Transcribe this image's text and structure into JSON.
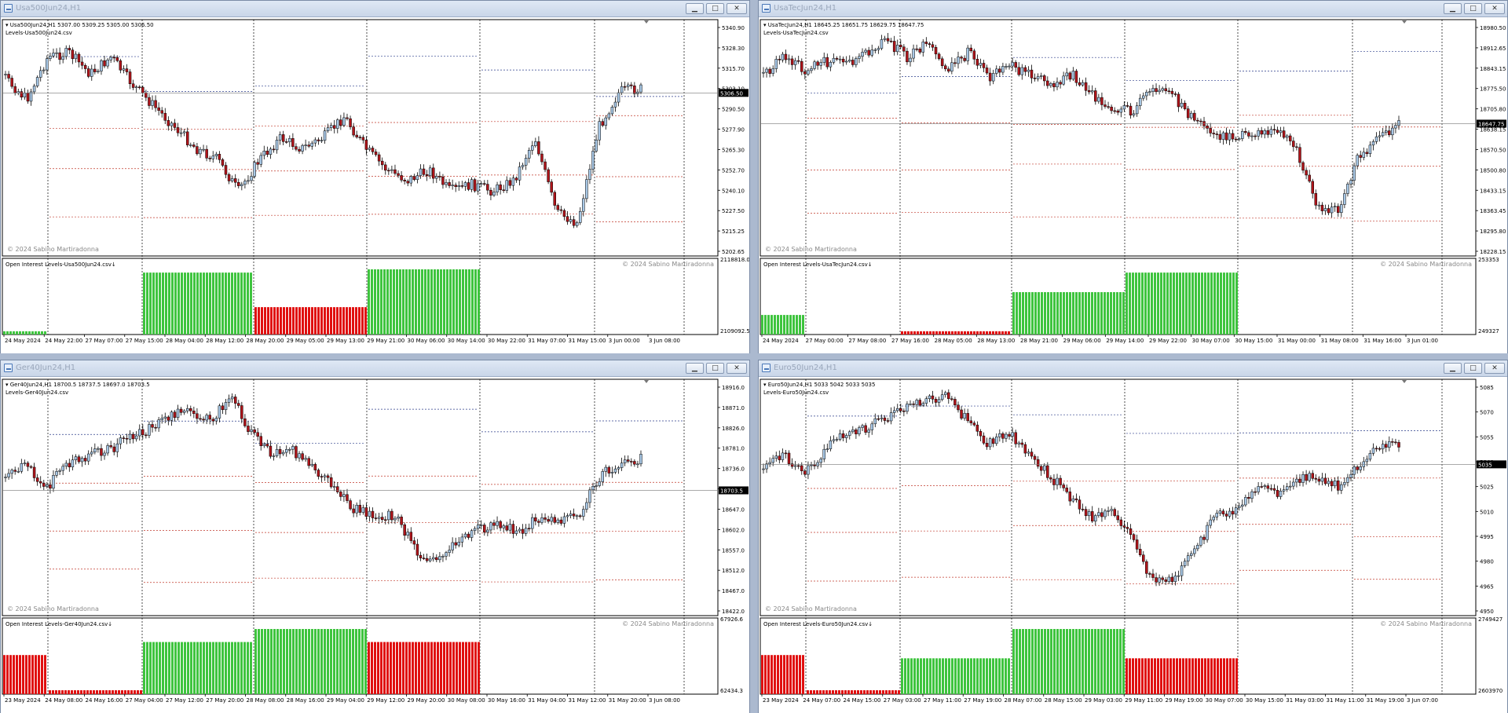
{
  "windows": [
    {
      "title": "Usa500Jun24,H1",
      "info": "Usa500Jun24,H1  5307.00 5309.25 5305.00 5306.50",
      "levels_label": "Levels-Usa500Jun24.csv",
      "copyright_main": "© 2024 Sabino Martiradonna",
      "oi_label": "Open Interest Levels-Usa500Jun24.csv↓",
      "copyright_oi": "© 2024 Sabino Martiradonna",
      "price_ticks": [
        "5340.90",
        "5328.30",
        "5315.70",
        "5303.10",
        "5290.50",
        "5277.90",
        "5265.30",
        "5252.70",
        "5240.10",
        "5227.50",
        "5215.25",
        "5202.65"
      ],
      "current_price": "5306.50",
      "current_price_pos": 0.31,
      "oi_ticks": [
        "2118818.0",
        "2109092.5"
      ],
      "time_ticks": [
        "24 May 2024",
        "24 May 22:00",
        "27 May 07:00",
        "27 May 15:00",
        "28 May 04:00",
        "28 May 12:00",
        "28 May 20:00",
        "29 May 05:00",
        "29 May 13:00",
        "29 May 21:00",
        "30 May 06:00",
        "30 May 14:00",
        "30 May 22:00",
        "31 May 07:00",
        "31 May 15:00",
        "3 Jun 00:00",
        "3 Jun 08:00"
      ],
      "oi_bars": [
        {
          "color": "green",
          "level": 0.05
        },
        {
          "color": "white",
          "level": 0
        },
        {
          "color": "green",
          "level": 0.95
        },
        {
          "color": "red",
          "level": 0.42
        },
        {
          "color": "green",
          "level": 1.0
        },
        {
          "color": "white",
          "level": 0
        },
        {
          "color": "white",
          "level": 0
        }
      ]
    },
    {
      "title": "UsaTecJun24,H1",
      "info": "UsaTecJun24,H1  18645.25 18651.75 18629.75 18647.75",
      "levels_label": "Levels-UsaTecJun24.csv",
      "copyright_main": "© 2024 Sabino Martiradonna",
      "oi_label": "Open Interest Levels-UsaTecJun24.csv↓",
      "copyright_oi": "© 2024 Sabino Martiradonna",
      "price_ticks": [
        "18980.50",
        "18912.65",
        "18843.15",
        "18775.50",
        "18705.80",
        "18638.15",
        "18570.50",
        "18500.80",
        "18433.15",
        "18363.45",
        "18295.80",
        "18228.15"
      ],
      "current_price": "18647.75",
      "current_price_pos": 0.44,
      "oi_ticks": [
        "253353",
        "249327"
      ],
      "time_ticks": [
        "24 May 2024",
        "27 May 00:00",
        "27 May 08:00",
        "27 May 16:00",
        "28 May 05:00",
        "28 May 13:00",
        "28 May 21:00",
        "29 May 06:00",
        "29 May 14:00",
        "29 May 22:00",
        "30 May 07:00",
        "30 May 15:00",
        "31 May 00:00",
        "31 May 08:00",
        "31 May 16:00",
        "3 Jun 01:00"
      ],
      "oi_bars": [
        {
          "color": "green",
          "level": 0.3
        },
        {
          "color": "white",
          "level": 0
        },
        {
          "color": "red",
          "level": 0.05
        },
        {
          "color": "green",
          "level": 0.65
        },
        {
          "color": "green",
          "level": 0.95
        },
        {
          "color": "white",
          "level": 0
        },
        {
          "color": "white",
          "level": 0
        }
      ]
    },
    {
      "title": "Ger40Jun24,H1",
      "info": "Ger40Jun24,H1  18700.5 18737.5 18697.0 18703.5",
      "levels_label": "Levels-Ger40Jun24.csv",
      "copyright_main": "© 2024 Sabino Martiradonna",
      "oi_label": "Open Interest Levels-Ger40Jun24.csv↓",
      "copyright_oi": "© 2024 Sabino Martiradonna",
      "price_ticks": [
        "18916.0",
        "18871.0",
        "18826.0",
        "18781.0",
        "18736.0",
        "18692.0",
        "18647.0",
        "18602.0",
        "18557.0",
        "18512.0",
        "18467.0",
        "18422.0"
      ],
      "current_price": "18703.5",
      "current_price_pos": 0.47,
      "oi_ticks": [
        "67926.6",
        "62434.3"
      ],
      "time_ticks": [
        "23 May 2024",
        "24 May 08:00",
        "24 May 16:00",
        "27 May 04:00",
        "27 May 12:00",
        "27 May 20:00",
        "28 May 08:00",
        "28 May 16:00",
        "29 May 04:00",
        "29 May 12:00",
        "29 May 20:00",
        "30 May 08:00",
        "30 May 16:00",
        "31 May 04:00",
        "31 May 12:00",
        "31 May 20:00",
        "3 Jun 08:00"
      ],
      "oi_bars": [
        {
          "color": "red",
          "level": 0.6
        },
        {
          "color": "red",
          "level": 0.06
        },
        {
          "color": "green",
          "level": 0.8
        },
        {
          "color": "green",
          "level": 1.0
        },
        {
          "color": "red",
          "level": 0.8
        },
        {
          "color": "white",
          "level": 0
        },
        {
          "color": "white",
          "level": 0
        }
      ]
    },
    {
      "title": "Euro50Jun24,H1",
      "info": "Euro50Jun24,H1  5033 5042 5033 5035",
      "levels_label": "Levels-Euro50Jun24.csv",
      "copyright_main": "© 2024 Sabino Martiradonna",
      "oi_label": "Open Interest Levels-Euro50Jun24.csv↓",
      "copyright_oi": "© 2024 Sabino Martiradonna",
      "price_ticks": [
        "5085",
        "5070",
        "5055",
        "5040",
        "5025",
        "5010",
        "4995",
        "4980",
        "4965",
        "4950"
      ],
      "current_price": "5035",
      "current_price_pos": 0.36,
      "oi_ticks": [
        "2749427",
        "2603970"
      ],
      "time_ticks": [
        "23 May 2024",
        "24 May 07:00",
        "24 May 15:00",
        "27 May 03:00",
        "27 May 11:00",
        "27 May 19:00",
        "28 May 07:00",
        "28 May 15:00",
        "29 May 03:00",
        "29 May 11:00",
        "29 May 19:00",
        "30 May 07:00",
        "30 May 15:00",
        "31 May 03:00",
        "31 May 11:00",
        "31 May 19:00",
        "3 Jun 07:00"
      ],
      "oi_bars": [
        {
          "color": "red",
          "level": 0.6
        },
        {
          "color": "red",
          "level": 0.06
        },
        {
          "color": "green",
          "level": 0.55
        },
        {
          "color": "green",
          "level": 1.0
        },
        {
          "color": "red",
          "level": 0.55
        },
        {
          "color": "white",
          "level": 0
        },
        {
          "color": "white",
          "level": 0
        }
      ]
    }
  ],
  "colors": {
    "bull": "#a8c8e6",
    "bear": "#b0141a",
    "oi_green": "#3ec43e",
    "oi_red": "#e01010",
    "level_red": "#c0392b",
    "level_blue": "#2c3e8a"
  }
}
